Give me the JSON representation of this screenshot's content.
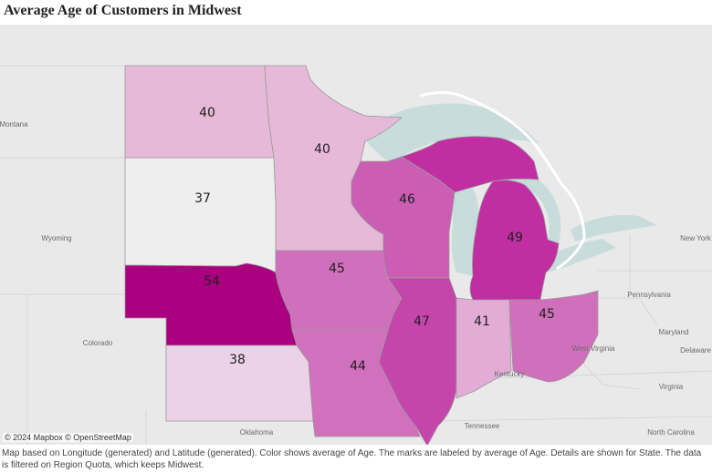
{
  "title": "Average Age of Customers in Midwest",
  "attribution": "© 2024 Mapbox © OpenStreetMap",
  "caption": "Map based on Longitude (generated) and Latitude (generated).  Color shows average of Age.  The marks are labeled by average of Age.  Details are shown for State. The data is filtered on Region Quota, which keeps Midwest.",
  "legend": {
    "measure": "average of Age",
    "color_low": "#f0f0f0",
    "color_high": "#aa0080"
  },
  "states": [
    {
      "state": "North Dakota",
      "avg_age": 40,
      "color": "#e6b9d9"
    },
    {
      "state": "Minnesota",
      "avg_age": 40,
      "color": "#e6b9d9"
    },
    {
      "state": "South Dakota",
      "avg_age": 37,
      "color": "#eeeeee"
    },
    {
      "state": "Wisconsin",
      "avg_age": 46,
      "color": "#cc5db5"
    },
    {
      "state": "Michigan",
      "avg_age": 49,
      "color": "#c12ea2"
    },
    {
      "state": "Nebraska",
      "avg_age": 54,
      "color": "#aa0080"
    },
    {
      "state": "Iowa",
      "avg_age": 45,
      "color": "#d06fbc"
    },
    {
      "state": "Illinois",
      "avg_age": 47,
      "color": "#c545ab"
    },
    {
      "state": "Indiana",
      "avg_age": 41,
      "color": "#e2acd6"
    },
    {
      "state": "Ohio",
      "avg_age": 45,
      "color": "#d06fbc"
    },
    {
      "state": "Kansas",
      "avg_age": 38,
      "color": "#ecd2e6"
    },
    {
      "state": "Missouri",
      "avg_age": 44,
      "color": "#d170bd"
    }
  ],
  "place_labels": [
    "Montana",
    "Wyoming",
    "Colorado",
    "Oklahoma",
    "Kentucky",
    "Tennessee",
    "Pennsylvania",
    "West Virginia",
    "Maryland",
    "Delaware",
    "Virginia",
    "North Carolina",
    "New York"
  ],
  "colors": {
    "background": "#e9e9e9",
    "water": "#c9dcdc",
    "border": "#9a9a9a"
  }
}
